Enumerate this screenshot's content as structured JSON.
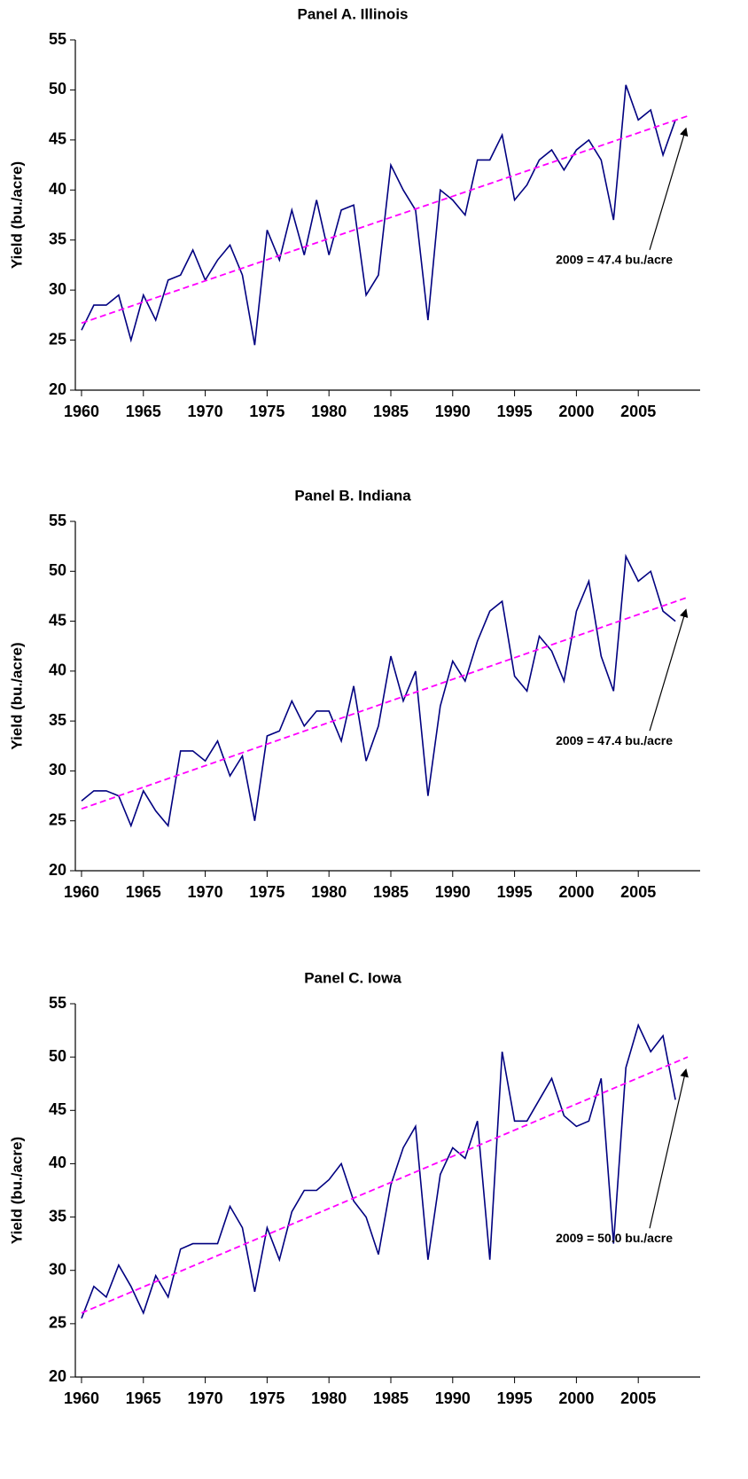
{
  "chart_data": [
    {
      "type": "line",
      "title": "Panel A. Illinois",
      "y_label": "Yield (bu./acre)",
      "xlim": [
        1959.5,
        2010
      ],
      "xticks": [
        1960,
        1965,
        1970,
        1975,
        1980,
        1985,
        1990,
        1995,
        2000,
        2005
      ],
      "ylim": [
        20,
        55
      ],
      "yticks": [
        20,
        25,
        30,
        35,
        40,
        45,
        50,
        55
      ],
      "series": [
        {
          "color": "#000080",
          "x": [
            1960,
            1961,
            1962,
            1963,
            1964,
            1965,
            1966,
            1967,
            1968,
            1969,
            1970,
            1971,
            1972,
            1973,
            1974,
            1975,
            1976,
            1977,
            1978,
            1979,
            1980,
            1981,
            1982,
            1983,
            1984,
            1985,
            1986,
            1987,
            1988,
            1989,
            1990,
            1991,
            1992,
            1993,
            1994,
            1995,
            1996,
            1997,
            1998,
            1999,
            2000,
            2001,
            2002,
            2003,
            2004,
            2005,
            2006,
            2007,
            2008
          ],
          "values": [
            26,
            28.5,
            28.5,
            29.5,
            25,
            29.5,
            27,
            31,
            31.5,
            34,
            31,
            33,
            34.5,
            31.5,
            24.5,
            36,
            33,
            38,
            33.5,
            39,
            33.5,
            38,
            38.5,
            29.5,
            31.5,
            42.5,
            40,
            38,
            27,
            40,
            39,
            37.5,
            43,
            43,
            45.5,
            39,
            40.5,
            43,
            44,
            42,
            44,
            45,
            43,
            37,
            50.5,
            47,
            48,
            43.5,
            47
          ]
        },
        {
          "color": "#ff00ff",
          "dashed": true,
          "x": [
            1960,
            2009
          ],
          "values": [
            26.7,
            47.4
          ]
        }
      ],
      "annotation": {
        "text": "2009 = 47.4 bu./acre",
        "x": 2009,
        "y": 47.4
      }
    },
    {
      "type": "line",
      "title": "Panel B. Indiana",
      "y_label": "Yield (bu./acre)",
      "xlim": [
        1959.5,
        2010
      ],
      "xticks": [
        1960,
        1965,
        1970,
        1975,
        1980,
        1985,
        1990,
        1995,
        2000,
        2005
      ],
      "ylim": [
        20,
        55
      ],
      "yticks": [
        20,
        25,
        30,
        35,
        40,
        45,
        50,
        55
      ],
      "series": [
        {
          "color": "#000080",
          "x": [
            1960,
            1961,
            1962,
            1963,
            1964,
            1965,
            1966,
            1967,
            1968,
            1969,
            1970,
            1971,
            1972,
            1973,
            1974,
            1975,
            1976,
            1977,
            1978,
            1979,
            1980,
            1981,
            1982,
            1983,
            1984,
            1985,
            1986,
            1987,
            1988,
            1989,
            1990,
            1991,
            1992,
            1993,
            1994,
            1995,
            1996,
            1997,
            1998,
            1999,
            2000,
            2001,
            2002,
            2003,
            2004,
            2005,
            2006,
            2007,
            2008
          ],
          "values": [
            27,
            28,
            28,
            27.5,
            24.5,
            28,
            26,
            24.5,
            32,
            32,
            31,
            33,
            29.5,
            31.5,
            25,
            33.5,
            34,
            37,
            34.5,
            36,
            36,
            33,
            38.5,
            31,
            34.5,
            41.5,
            37,
            40,
            27.5,
            36.5,
            41,
            39,
            43,
            46,
            47,
            39.5,
            38,
            43.5,
            42,
            39,
            46,
            49,
            41.5,
            38,
            51.5,
            49,
            50,
            46,
            45
          ]
        },
        {
          "color": "#ff00ff",
          "dashed": true,
          "x": [
            1960,
            2009
          ],
          "values": [
            26.2,
            47.4
          ]
        }
      ],
      "annotation": {
        "text": "2009 = 47.4 bu./acre",
        "x": 2009,
        "y": 47.4
      }
    },
    {
      "type": "line",
      "title": "Panel C. Iowa",
      "y_label": "Yield (bu./acre)",
      "xlim": [
        1959.5,
        2010
      ],
      "xticks": [
        1960,
        1965,
        1970,
        1975,
        1980,
        1985,
        1990,
        1995,
        2000,
        2005
      ],
      "ylim": [
        20,
        55
      ],
      "yticks": [
        20,
        25,
        30,
        35,
        40,
        45,
        50,
        55
      ],
      "series": [
        {
          "color": "#000080",
          "x": [
            1960,
            1961,
            1962,
            1963,
            1964,
            1965,
            1966,
            1967,
            1968,
            1969,
            1970,
            1971,
            1972,
            1973,
            1974,
            1975,
            1976,
            1977,
            1978,
            1979,
            1980,
            1981,
            1982,
            1983,
            1984,
            1985,
            1986,
            1987,
            1988,
            1989,
            1990,
            1991,
            1992,
            1993,
            1994,
            1995,
            1996,
            1997,
            1998,
            1999,
            2000,
            2001,
            2002,
            2003,
            2004,
            2005,
            2006,
            2007,
            2008
          ],
          "values": [
            25.5,
            28.5,
            27.5,
            30.5,
            28.5,
            26,
            29.5,
            27.5,
            32,
            32.5,
            32.5,
            32.5,
            36,
            34,
            28,
            34,
            31,
            35.5,
            37.5,
            37.5,
            38.5,
            40,
            36.5,
            35,
            31.5,
            38,
            41.5,
            43.5,
            31,
            39,
            41.5,
            40.5,
            44,
            31,
            50.5,
            44,
            44,
            46,
            48,
            44.5,
            43.5,
            44,
            48,
            32.5,
            49,
            53,
            50.5,
            52,
            46
          ]
        },
        {
          "color": "#ff00ff",
          "dashed": true,
          "x": [
            1960,
            2009
          ],
          "values": [
            26.0,
            50.0
          ]
        }
      ],
      "annotation": {
        "text": "2009 = 50.0 bu./acre",
        "x": 2009,
        "y": 50.0
      }
    }
  ]
}
